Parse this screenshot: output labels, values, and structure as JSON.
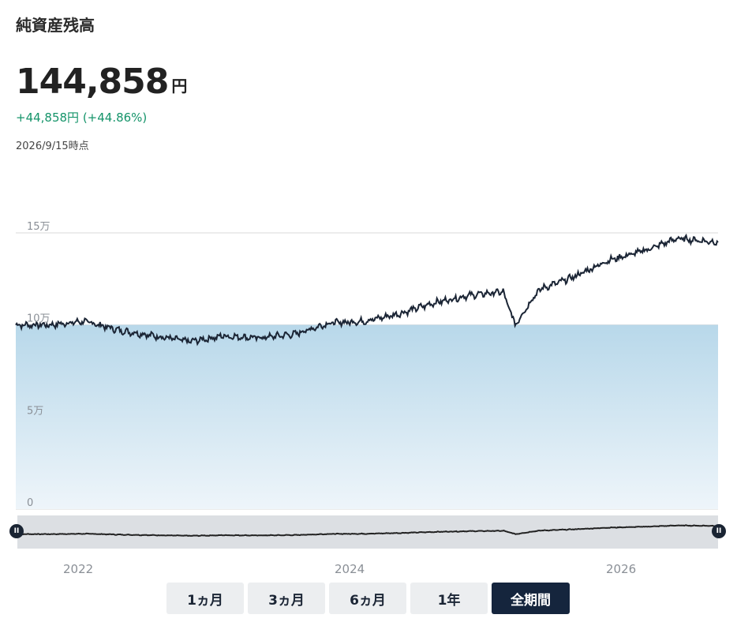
{
  "header": {
    "title": "純資産残高",
    "value": "144,858",
    "unit": "円",
    "change": "+44,858円 (+44.86%)",
    "as_of": "2026/9/15時点"
  },
  "chart_data": {
    "type": "area",
    "yticks": [
      "0",
      "5万",
      "10万",
      "15万"
    ],
    "ylim": [
      0,
      150000
    ],
    "baseline": 100000,
    "x_ticks": [
      "2022",
      "2024",
      "2026"
    ],
    "x": [
      "2021-09",
      "2021-12",
      "2022-03",
      "2022-06",
      "2022-09",
      "2022-12",
      "2023-03",
      "2023-06",
      "2023-09",
      "2023-12",
      "2024-03",
      "2024-06",
      "2024-09",
      "2024-12",
      "2025-03",
      "2025-04",
      "2025-06",
      "2025-09",
      "2025-12",
      "2026-03",
      "2026-06",
      "2026-09"
    ],
    "values": [
      100000,
      100000,
      102000,
      97000,
      94000,
      91000,
      94000,
      93000,
      95000,
      101000,
      102000,
      106000,
      112000,
      116000,
      118000,
      100000,
      119000,
      126000,
      135000,
      140000,
      147000,
      144858
    ],
    "colors": {
      "line": "#1b2535",
      "fill_top": "#b8d8ea",
      "fill_bottom": "#eef5fa",
      "grid": "#d8d8d8"
    }
  },
  "buttons": [
    {
      "label": "1ヵ月",
      "active": false
    },
    {
      "label": "3ヵ月",
      "active": false
    },
    {
      "label": "6ヵ月",
      "active": false
    },
    {
      "label": "1年",
      "active": false
    },
    {
      "label": "全期間",
      "active": true
    }
  ]
}
